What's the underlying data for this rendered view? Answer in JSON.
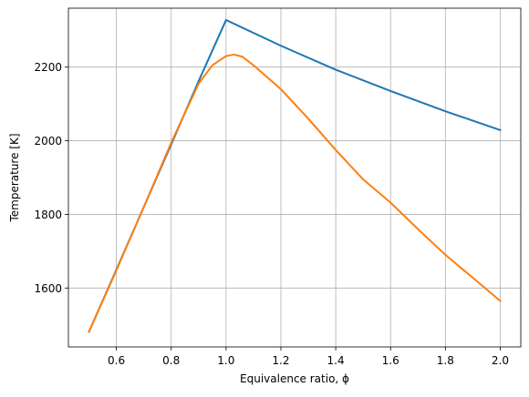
{
  "chart_data": {
    "type": "line",
    "title": "",
    "xlabel": "Equivalence ratio, ϕ",
    "ylabel": "Temperature [K]",
    "xlim": [
      0.425,
      2.075
    ],
    "ylim": [
      1440,
      2360
    ],
    "x_ticks": [
      0.6,
      0.8,
      1.0,
      1.2,
      1.4,
      1.6,
      1.8,
      2.0
    ],
    "x_tick_labels": [
      "0.6",
      "0.8",
      "1.0",
      "1.2",
      "1.4",
      "1.6",
      "1.8",
      "2.0"
    ],
    "y_ticks": [
      1600,
      1800,
      2000,
      2200
    ],
    "y_tick_labels": [
      "1600",
      "1800",
      "2000",
      "2200"
    ],
    "grid": true,
    "legend": "none",
    "series": [
      {
        "color": "#1f77b4",
        "x": [
          0.5,
          0.6,
          0.7,
          0.8,
          0.9,
          1.0,
          1.2,
          1.4,
          1.6,
          1.8,
          2.0
        ],
        "values": [
          1481,
          1650,
          1820,
          1990,
          2162,
          2328,
          2258,
          2193,
          2135,
          2080,
          2029
        ]
      },
      {
        "color": "#ff7f0e",
        "x": [
          0.5,
          0.6,
          0.7,
          0.8,
          0.9,
          0.95,
          1.0,
          1.03,
          1.06,
          1.1,
          1.2,
          1.3,
          1.4,
          1.5,
          1.6,
          1.7,
          1.8,
          1.9,
          2.0
        ],
        "values": [
          1481,
          1648,
          1820,
          1995,
          2155,
          2205,
          2230,
          2234,
          2228,
          2205,
          2140,
          2060,
          1975,
          1895,
          1832,
          1760,
          1690,
          1628,
          1565
        ]
      }
    ]
  }
}
